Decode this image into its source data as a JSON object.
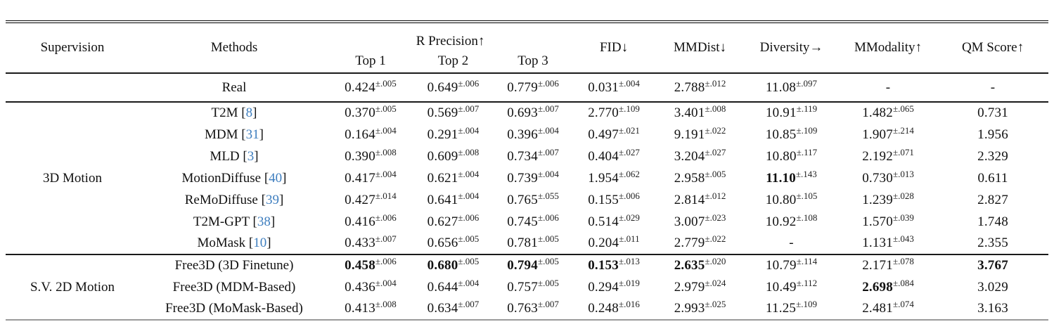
{
  "colors": {
    "citation": "#3e7ebf",
    "text": "#111111",
    "rule": "#1a1a1a"
  },
  "header": {
    "supervision": "Supervision",
    "methods": "Methods",
    "r_precision": "R Precision↑",
    "subcols": [
      "Top 1",
      "Top 2",
      "Top 3"
    ],
    "fid": "FID↓",
    "mmdist": "MMDist↓",
    "diversity": "Diversity→",
    "mmodality": "MModality↑",
    "qm_score": "QM Score↑"
  },
  "groups": [
    {
      "supervision": "",
      "rows": [
        {
          "method": "Real",
          "cite": "",
          "cells": [
            {
              "v": "0.424",
              "e": "±.005"
            },
            {
              "v": "0.649",
              "e": "±.006"
            },
            {
              "v": "0.779",
              "e": "±.006"
            },
            {
              "v": "0.031",
              "e": "±.004"
            },
            {
              "v": "2.788",
              "e": "±.012"
            },
            {
              "v": "11.08",
              "e": "±.097"
            },
            {
              "v": "-"
            },
            {
              "v": "-"
            }
          ]
        }
      ]
    },
    {
      "supervision": "3D Motion",
      "rows": [
        {
          "method": "T2M",
          "cite": "8",
          "cells": [
            {
              "v": "0.370",
              "e": "±.005"
            },
            {
              "v": "0.569",
              "e": "±.007"
            },
            {
              "v": "0.693",
              "e": "±.007"
            },
            {
              "v": "2.770",
              "e": "±.109"
            },
            {
              "v": "3.401",
              "e": "±.008"
            },
            {
              "v": "10.91",
              "e": "±.119"
            },
            {
              "v": "1.482",
              "e": "±.065"
            },
            {
              "v": "0.731"
            }
          ]
        },
        {
          "method": "MDM",
          "cite": "31",
          "cells": [
            {
              "v": "0.164",
              "e": "±.004"
            },
            {
              "v": "0.291",
              "e": "±.004"
            },
            {
              "v": "0.396",
              "e": "±.004"
            },
            {
              "v": "0.497",
              "e": "±.021"
            },
            {
              "v": "9.191",
              "e": "±.022"
            },
            {
              "v": "10.85",
              "e": "±.109"
            },
            {
              "v": "1.907",
              "e": "±.214"
            },
            {
              "v": "1.956"
            }
          ]
        },
        {
          "method": "MLD",
          "cite": "3",
          "cells": [
            {
              "v": "0.390",
              "e": "±.008"
            },
            {
              "v": "0.609",
              "e": "±.008"
            },
            {
              "v": "0.734",
              "e": "±.007"
            },
            {
              "v": "0.404",
              "e": "±.027"
            },
            {
              "v": "3.204",
              "e": "±.027"
            },
            {
              "v": "10.80",
              "e": "±.117"
            },
            {
              "v": "2.192",
              "e": "±.071"
            },
            {
              "v": "2.329"
            }
          ]
        },
        {
          "method": "MotionDiffuse",
          "cite": "40",
          "cells": [
            {
              "v": "0.417",
              "e": "±.004"
            },
            {
              "v": "0.621",
              "e": "±.004"
            },
            {
              "v": "0.739",
              "e": "±.004"
            },
            {
              "v": "1.954",
              "e": "±.062"
            },
            {
              "v": "2.958",
              "e": "±.005"
            },
            {
              "v": "11.10",
              "e": "±.143",
              "b": true
            },
            {
              "v": "0.730",
              "e": "±.013"
            },
            {
              "v": "0.611"
            }
          ]
        },
        {
          "method": "ReMoDiffuse",
          "cite": "39",
          "cells": [
            {
              "v": "0.427",
              "e": "±.014"
            },
            {
              "v": "0.641",
              "e": "±.004"
            },
            {
              "v": "0.765",
              "e": "±.055"
            },
            {
              "v": "0.155",
              "e": "±.006"
            },
            {
              "v": "2.814",
              "e": "±.012"
            },
            {
              "v": "10.80",
              "e": "±.105"
            },
            {
              "v": "1.239",
              "e": "±.028"
            },
            {
              "v": "2.827"
            }
          ]
        },
        {
          "method": "T2M-GPT",
          "cite": "38",
          "cells": [
            {
              "v": "0.416",
              "e": "±.006"
            },
            {
              "v": "0.627",
              "e": "±.006"
            },
            {
              "v": "0.745",
              "e": "±.006"
            },
            {
              "v": "0.514",
              "e": "±.029"
            },
            {
              "v": "3.007",
              "e": "±.023"
            },
            {
              "v": "10.92",
              "e": "±.108"
            },
            {
              "v": "1.570",
              "e": "±.039"
            },
            {
              "v": "1.748"
            }
          ]
        },
        {
          "method": "MoMask",
          "cite": "10",
          "cells": [
            {
              "v": "0.433",
              "e": "±.007"
            },
            {
              "v": "0.656",
              "e": "±.005"
            },
            {
              "v": "0.781",
              "e": "±.005"
            },
            {
              "v": "0.204",
              "e": "±.011"
            },
            {
              "v": "2.779",
              "e": "±.022"
            },
            {
              "v": "-"
            },
            {
              "v": "1.131",
              "e": "±.043"
            },
            {
              "v": "2.355"
            }
          ]
        }
      ]
    },
    {
      "supervision": "S.V. 2D Motion",
      "rows": [
        {
          "method": "Free3D (3D Finetune)",
          "cite": "",
          "cells": [
            {
              "v": "0.458",
              "e": "±.006",
              "b": true
            },
            {
              "v": "0.680",
              "e": "±.005",
              "b": true
            },
            {
              "v": "0.794",
              "e": "±.005",
              "b": true
            },
            {
              "v": "0.153",
              "e": "±.013",
              "b": true
            },
            {
              "v": "2.635",
              "e": "±.020",
              "b": true
            },
            {
              "v": "10.79",
              "e": "±.114"
            },
            {
              "v": "2.171",
              "e": "±.078"
            },
            {
              "v": "3.767",
              "b": true
            }
          ]
        },
        {
          "method": "Free3D (MDM-Based)",
          "cite": "",
          "cells": [
            {
              "v": "0.436",
              "e": "±.004"
            },
            {
              "v": "0.644",
              "e": "±.004"
            },
            {
              "v": "0.757",
              "e": "±.005"
            },
            {
              "v": "0.294",
              "e": "±.019"
            },
            {
              "v": "2.979",
              "e": "±.024"
            },
            {
              "v": "10.49",
              "e": "±.112"
            },
            {
              "v": "2.698",
              "e": "±.084",
              "b": true
            },
            {
              "v": "3.029"
            }
          ]
        },
        {
          "method": "Free3D (MoMask-Based)",
          "cite": "",
          "cells": [
            {
              "v": "0.413",
              "e": "±.008"
            },
            {
              "v": "0.634",
              "e": "±.007"
            },
            {
              "v": "0.763",
              "e": "±.007"
            },
            {
              "v": "0.248",
              "e": "±.016"
            },
            {
              "v": "2.993",
              "e": "±.025"
            },
            {
              "v": "11.25",
              "e": "±.109"
            },
            {
              "v": "2.481",
              "e": "±.074"
            },
            {
              "v": "3.163"
            }
          ]
        }
      ]
    }
  ]
}
